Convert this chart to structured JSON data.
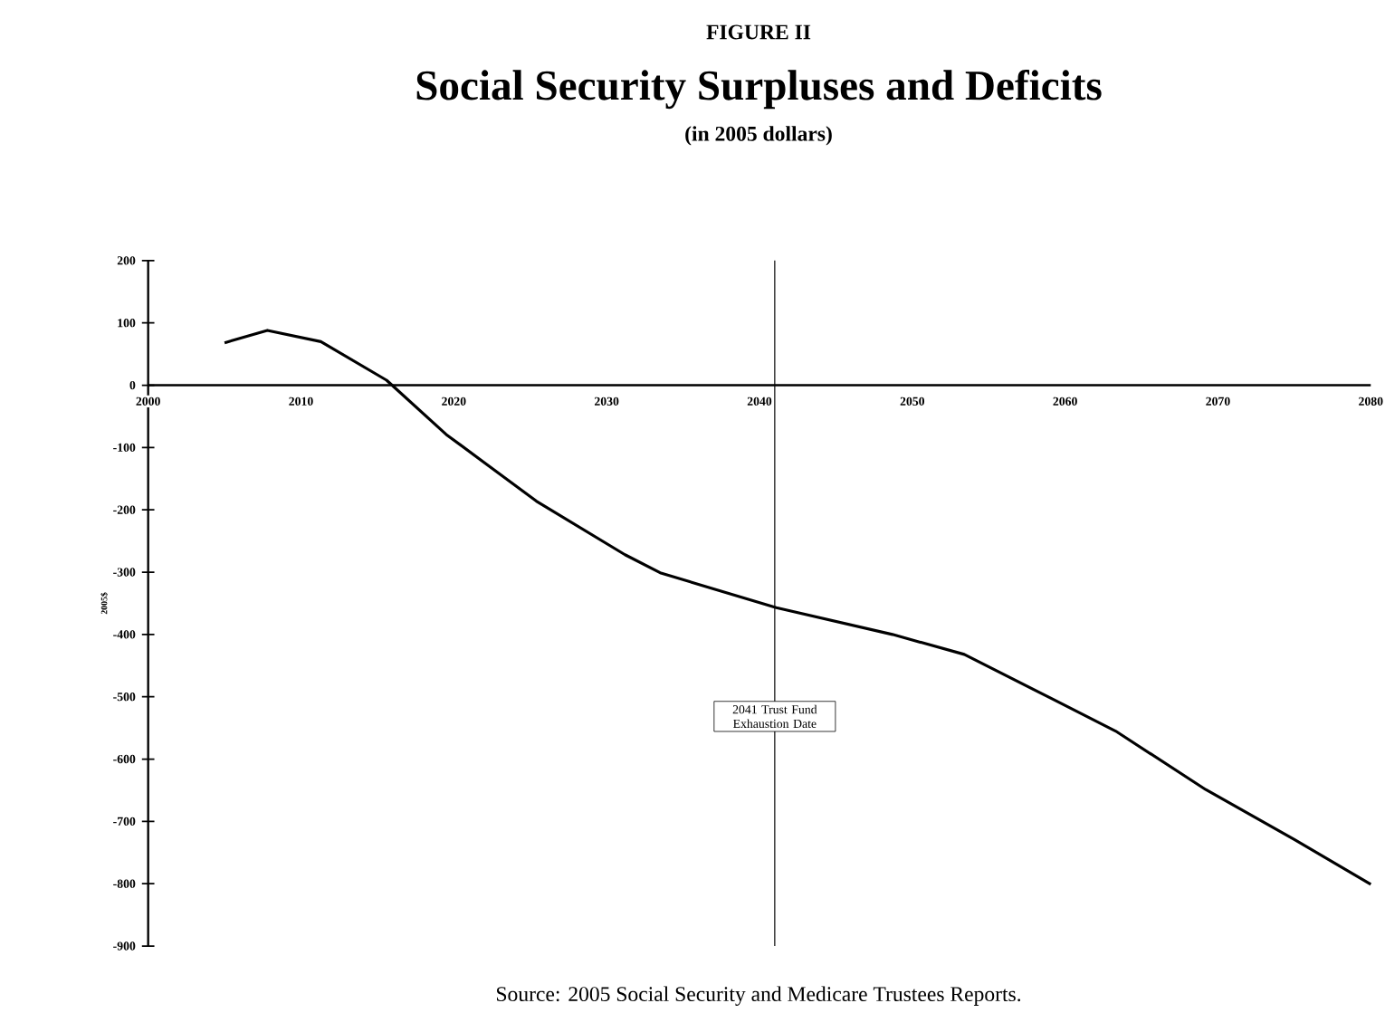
{
  "chart_data": {
    "type": "line",
    "title": "Social Security Surpluses and Deficits",
    "subtitle": "(in 2005 dollars)",
    "ylabel": "2005$",
    "annotations": [
      "FIGURE II",
      "Source: 2005 Social Security and Medicare Trustees Reports."
    ],
    "x": [
      2005,
      2007.8,
      2011.3,
      2015.6,
      2019.5,
      2025.4,
      2031.2,
      2033.5,
      2036.2,
      2041.1,
      2048.7,
      2053.4,
      2059.2,
      2063.3,
      2069.2,
      2075,
      2080
    ],
    "series": [
      {
        "color": "#000000",
        "values": [
          68,
          88,
          70,
          8,
          -79,
          -186,
          -272,
          -301,
          -321,
          -357,
          -400,
          -432,
          -504,
          -555,
          -649,
          -729,
          -801
        ]
      }
    ],
    "xlim": [
      2000,
      2080
    ],
    "xticks": [
      2000,
      2010,
      2020,
      2030,
      2040,
      2050,
      2060,
      2070,
      2080
    ],
    "ylim": [
      -900,
      200
    ],
    "yticks": [
      -900,
      -800,
      -700,
      -600,
      -500,
      -400,
      -300,
      -200,
      -100,
      0,
      100,
      200
    ],
    "ref_lines": [
      {
        "axis": "x",
        "value": 2041,
        "label": "2041 Trust Fund Exhaustion Date",
        "color": "#000000"
      }
    ],
    "marker": "none",
    "line_style": "solid"
  }
}
